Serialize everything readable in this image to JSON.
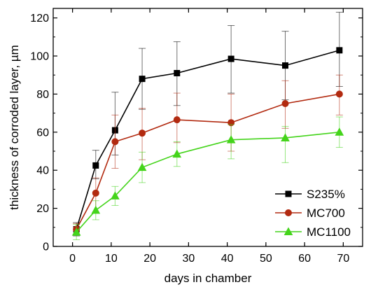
{
  "chart_data": {
    "type": "line",
    "xlabel": "days in chamber",
    "ylabel": "thickness of corroded layer, µm",
    "xlim": [
      -5,
      75
    ],
    "ylim": [
      0,
      125
    ],
    "xticks": [
      0,
      10,
      20,
      30,
      40,
      50,
      60,
      70
    ],
    "yticks": [
      0,
      20,
      40,
      60,
      80,
      100,
      120
    ],
    "grid": false,
    "legend_position": "bottom-right",
    "x": [
      1,
      6,
      11,
      18,
      27,
      41,
      55,
      69
    ],
    "series": [
      {
        "name": "S235%",
        "color": "#000000",
        "marker": "square",
        "values": [
          9,
          42.5,
          61,
          88,
          91,
          98.5,
          95,
          103
        ],
        "error_low": [
          3.5,
          7,
          13,
          16,
          17,
          18,
          18,
          19
        ],
        "error_high": [
          3.5,
          8,
          20,
          16,
          16.5,
          17.5,
          18,
          20
        ]
      },
      {
        "name": "MC700",
        "color": "#b22a10",
        "marker": "circle",
        "values": [
          9,
          28,
          55,
          59.5,
          66.5,
          65,
          75,
          80
        ],
        "error_low": [
          3,
          10,
          14,
          14,
          12,
          15,
          13,
          11
        ],
        "error_high": [
          3,
          8,
          14,
          13,
          14,
          15,
          12,
          10
        ]
      },
      {
        "name": "MC1100",
        "color": "#44d41b",
        "marker": "triangle",
        "values": [
          7.5,
          19,
          26.5,
          41.5,
          48.5,
          56,
          57,
          60
        ],
        "error_low": [
          4,
          5,
          5,
          8,
          6.5,
          10,
          13,
          8
        ],
        "error_high": [
          4,
          5,
          5,
          8,
          6.5,
          8,
          6,
          8
        ]
      }
    ]
  }
}
